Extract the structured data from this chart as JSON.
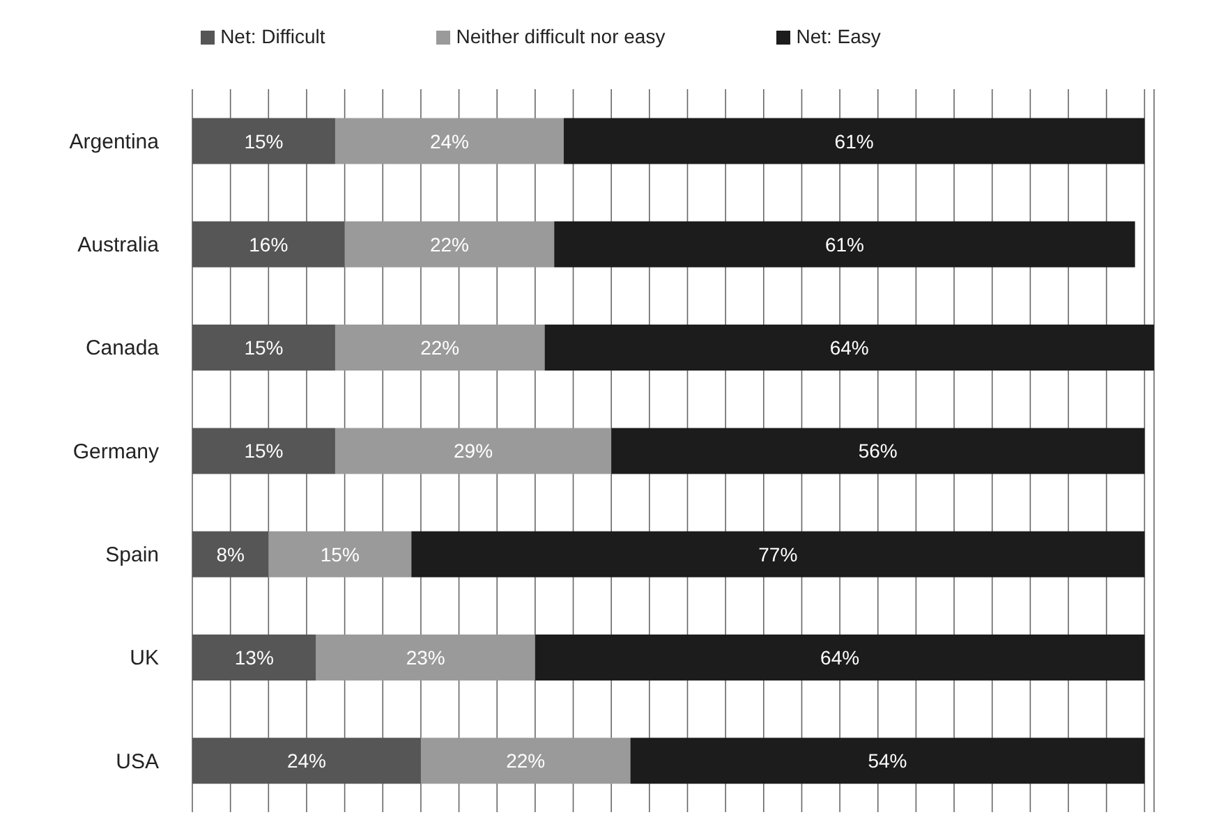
{
  "chart_data": {
    "type": "bar",
    "orientation": "horizontal",
    "stacked": true,
    "categories": [
      "Argentina",
      "Australia",
      "Canada",
      "Germany",
      "Spain",
      "UK",
      "USA"
    ],
    "series": [
      {
        "name": "Net: Difficult",
        "color": "#565656",
        "values": [
          15,
          16,
          15,
          15,
          8,
          13,
          24
        ],
        "value_labels": [
          "15%",
          "16%",
          "15%",
          "15%",
          "8%",
          "13%",
          "24%"
        ]
      },
      {
        "name": "Neither difficult nor easy",
        "color": "#9a9a9a",
        "values": [
          24,
          22,
          22,
          29,
          15,
          23,
          22
        ],
        "value_labels": [
          "24%",
          "22%",
          "22%",
          "29%",
          "15%",
          "23%",
          "22%"
        ]
      },
      {
        "name": "Net: Easy",
        "color": "#1c1c1c",
        "values": [
          61,
          61,
          64,
          56,
          77,
          64,
          54
        ],
        "value_labels": [
          "61%",
          "61%",
          "64%",
          "56%",
          "77%",
          "64%",
          "54%"
        ]
      }
    ],
    "xlim": [
      0,
      101
    ],
    "xticks": [
      {
        "value": 0,
        "label": null
      },
      {
        "value": 4,
        "label": null
      },
      {
        "value": 8,
        "label": null
      },
      {
        "value": 12,
        "label": null
      },
      {
        "value": 16,
        "label": null
      },
      {
        "value": 20,
        "label": null
      },
      {
        "value": 24,
        "label": null
      },
      {
        "value": 28,
        "label": null
      },
      {
        "value": 32,
        "label": null
      },
      {
        "value": 36,
        "label": null
      },
      {
        "value": 40,
        "label": null
      },
      {
        "value": 44,
        "label": null
      },
      {
        "value": 48,
        "label": null
      },
      {
        "value": 52,
        "label": null
      },
      {
        "value": 56,
        "label": null
      },
      {
        "value": 60,
        "label": null
      },
      {
        "value": 64,
        "label": null
      },
      {
        "value": 68,
        "label": null
      },
      {
        "value": 72,
        "label": null
      },
      {
        "value": 76,
        "label": null
      },
      {
        "value": 80,
        "label": null
      },
      {
        "value": 84,
        "label": null
      },
      {
        "value": 88,
        "label": null
      },
      {
        "value": 92,
        "label": null
      },
      {
        "value": 96,
        "label": null
      },
      {
        "value": 100,
        "label": null
      }
    ],
    "grid": "x",
    "legend": "top",
    "tick_labels": "y"
  }
}
